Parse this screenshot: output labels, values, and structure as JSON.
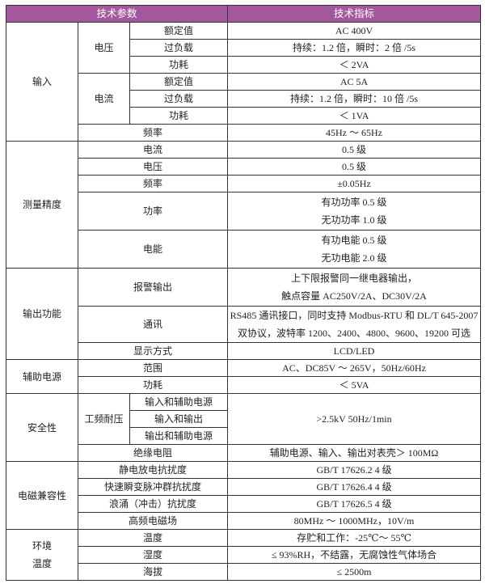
{
  "colors": {
    "header_bg": "#a3579d",
    "header_text": "#ffffff",
    "border": "#333333"
  },
  "header": {
    "param": "技术参数",
    "spec": "技术指标"
  },
  "rows": [
    [
      {
        "t": "输入",
        "rs": 7
      },
      {
        "t": "电压",
        "rs": 3
      },
      {
        "t": "额定值"
      },
      {
        "t": "AC 400V"
      }
    ],
    [
      {
        "t": "过负载"
      },
      {
        "t": "持续：1.2 倍，瞬时：2 倍 /5s"
      }
    ],
    [
      {
        "t": "功耗"
      },
      {
        "t": "＜ 2VA"
      }
    ],
    [
      {
        "t": "电流",
        "rs": 3
      },
      {
        "t": "额定值"
      },
      {
        "t": "AC 5A"
      }
    ],
    [
      {
        "t": "过负载"
      },
      {
        "t": "持续：1.2 倍，瞬时：10 倍 /5s"
      }
    ],
    [
      {
        "t": "功耗"
      },
      {
        "t": "＜ 1VA"
      }
    ],
    [
      {
        "t": "频率",
        "cs": 2
      },
      {
        "t": "45Hz ～ 65Hz"
      }
    ],
    [
      {
        "t": "测量精度",
        "rs": 5
      },
      {
        "t": "电流",
        "cs": 2
      },
      {
        "t": "0.5 级"
      }
    ],
    [
      {
        "t": "电压",
        "cs": 2
      },
      {
        "t": "0.5 级"
      }
    ],
    [
      {
        "t": "频率",
        "cs": 2
      },
      {
        "t": "±0.05Hz"
      }
    ],
    [
      {
        "t": "功率",
        "cs": 2
      },
      {
        "t": [
          "有功功率 0.5 级",
          "无功功率 1.0 级"
        ]
      }
    ],
    [
      {
        "t": "电能",
        "cs": 2
      },
      {
        "t": [
          "有功电能 0.5 级",
          "无功电能 2.0 级"
        ]
      }
    ],
    [
      {
        "t": "输出功能",
        "rs": 3
      },
      {
        "t": "报警输出",
        "cs": 2
      },
      {
        "t": [
          "上下限报警同一继电器输出，",
          "触点容量 AC250V/2A、DC30V/2A"
        ]
      }
    ],
    [
      {
        "t": "通讯",
        "cs": 2
      },
      {
        "t": [
          "RS485 通讯接口，同时支持 Modbus-RTU 和 DL/T 645-2007",
          "双协议，波特率 1200、2400、4800、9600、19200 可选"
        ]
      }
    ],
    [
      {
        "t": "显示方式",
        "cs": 2
      },
      {
        "t": "LCD/LED"
      }
    ],
    [
      {
        "t": "辅助电源",
        "rs": 2
      },
      {
        "t": "范围",
        "cs": 2
      },
      {
        "t": "AC、DC85V ～ 265V，50Hz/60Hz"
      }
    ],
    [
      {
        "t": "功耗",
        "cs": 2
      },
      {
        "t": "＜ 5VA"
      }
    ],
    [
      {
        "t": "安全性",
        "rs": 4
      },
      {
        "t": "工频耐压",
        "rs": 3
      },
      {
        "t": "输入和辅助电源"
      },
      {
        "t": ">2.5kV 50Hz/1min",
        "rs": 3
      }
    ],
    [
      {
        "t": "输入和输出"
      }
    ],
    [
      {
        "t": "输出和辅助电源"
      }
    ],
    [
      {
        "t": "绝缘电阻",
        "cs": 2
      },
      {
        "t": "辅助电源、输入、输出对表壳＞ 100MΩ"
      }
    ],
    [
      {
        "t": "电磁兼容性",
        "rs": 4
      },
      {
        "t": "静电放电抗扰度",
        "cs": 2
      },
      {
        "t": "GB/T 17626.2 4 级"
      }
    ],
    [
      {
        "t": "快速瞬变脉冲群抗扰度",
        "cs": 2
      },
      {
        "t": "GB/T 17626.4 4 级"
      }
    ],
    [
      {
        "t": "浪涌（冲击）抗扰度",
        "cs": 2
      },
      {
        "t": "GB/T 17626.5 4 级"
      }
    ],
    [
      {
        "t": "高频电磁场",
        "cs": 2
      },
      {
        "t": "80MHz ～ 1000MHz，10V/m"
      }
    ],
    [
      {
        "t": [
          "环境",
          "温度"
        ],
        "rs": 3
      },
      {
        "t": "温度",
        "cs": 2
      },
      {
        "t": "存贮和工作：-25℃～ 55℃"
      }
    ],
    [
      {
        "t": "湿度",
        "cs": 2
      },
      {
        "t": "≤ 93%RH，不结露，无腐蚀性气体场合"
      }
    ],
    [
      {
        "t": "海拔",
        "cs": 2
      },
      {
        "t": "≤ 2500m"
      }
    ]
  ]
}
